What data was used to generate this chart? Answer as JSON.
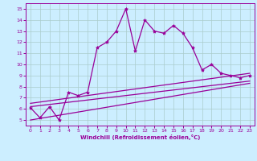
{
  "xlabel": "Windchill (Refroidissement éolien,°C)",
  "xlim": [
    -0.5,
    23.5
  ],
  "ylim": [
    4.5,
    15.5
  ],
  "yticks": [
    5,
    6,
    7,
    8,
    9,
    10,
    11,
    12,
    13,
    14,
    15
  ],
  "xticks": [
    0,
    1,
    2,
    3,
    4,
    5,
    6,
    7,
    8,
    9,
    10,
    11,
    12,
    13,
    14,
    15,
    16,
    17,
    18,
    19,
    20,
    21,
    22,
    23
  ],
  "background_color": "#cceeff",
  "grid_color": "#aacccc",
  "line_color": "#990099",
  "line1_x": [
    0,
    1,
    2,
    3,
    4,
    5,
    6,
    7,
    8,
    9,
    10,
    11,
    12,
    13,
    14,
    15,
    16,
    17,
    18,
    19,
    20,
    21,
    22,
    23
  ],
  "line1_y": [
    6.1,
    5.2,
    6.2,
    5.0,
    7.5,
    7.2,
    7.5,
    11.5,
    12.0,
    13.0,
    15.0,
    11.2,
    14.0,
    13.0,
    12.8,
    13.5,
    12.8,
    11.5,
    9.5,
    10.0,
    9.2,
    9.0,
    8.8,
    9.0
  ],
  "line2_x": [
    0,
    23
  ],
  "line2_y": [
    6.2,
    8.5
  ],
  "line3_x": [
    0,
    23
  ],
  "line3_y": [
    6.5,
    9.2
  ],
  "line4_x": [
    0,
    23
  ],
  "line4_y": [
    5.0,
    8.3
  ]
}
